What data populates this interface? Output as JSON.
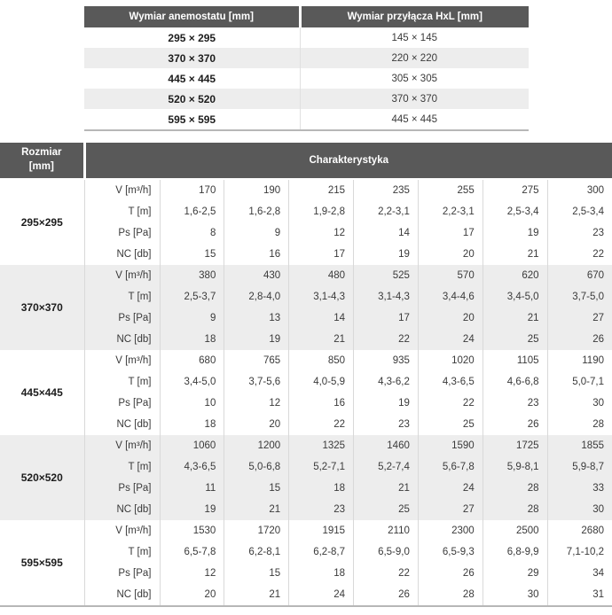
{
  "colors": {
    "header_bg": "#595959",
    "header_text": "#ffffff",
    "row_alt_bg": "#ededed",
    "row_bg": "#ffffff",
    "grid_line": "#d9d9d9",
    "bottom_border": "#b7b7b7",
    "text": "#3a3a3a"
  },
  "dimensions_table": {
    "headers": [
      "Wymiar anemostatu [mm]",
      "Wymiar przyłącza HxL [mm]"
    ],
    "rows": [
      {
        "anemostat": "295 × 295",
        "connector": "145 × 145"
      },
      {
        "anemostat": "370 × 370",
        "connector": "220 × 220"
      },
      {
        "anemostat": "445 × 445",
        "connector": "305 × 305"
      },
      {
        "anemostat": "520 × 520",
        "connector": "370 × 370"
      },
      {
        "anemostat": "595 × 595",
        "connector": "445 × 445"
      }
    ]
  },
  "characteristics_table": {
    "header_size": "Rozmiar [mm]",
    "header_main": "Charakterystyka",
    "row_labels": [
      "V [m³/h]",
      "T [m]",
      "Ps [Pa]",
      "NC [db]"
    ],
    "groups": [
      {
        "size": "295×295",
        "rows": [
          [
            "170",
            "190",
            "215",
            "235",
            "255",
            "275",
            "300"
          ],
          [
            "1,6-2,5",
            "1,6-2,8",
            "1,9-2,8",
            "2,2-3,1",
            "2,2-3,1",
            "2,5-3,4",
            "2,5-3,4"
          ],
          [
            "8",
            "9",
            "12",
            "14",
            "17",
            "19",
            "23"
          ],
          [
            "15",
            "16",
            "17",
            "19",
            "20",
            "21",
            "22"
          ]
        ]
      },
      {
        "size": "370×370",
        "rows": [
          [
            "380",
            "430",
            "480",
            "525",
            "570",
            "620",
            "670"
          ],
          [
            "2,5-3,7",
            "2,8-4,0",
            "3,1-4,3",
            "3,1-4,3",
            "3,4-4,6",
            "3,4-5,0",
            "3,7-5,0"
          ],
          [
            "9",
            "13",
            "14",
            "17",
            "20",
            "21",
            "27"
          ],
          [
            "18",
            "19",
            "21",
            "22",
            "24",
            "25",
            "26"
          ]
        ]
      },
      {
        "size": "445×445",
        "rows": [
          [
            "680",
            "765",
            "850",
            "935",
            "1020",
            "1105",
            "1190"
          ],
          [
            "3,4-5,0",
            "3,7-5,6",
            "4,0-5,9",
            "4,3-6,2",
            "4,3-6,5",
            "4,6-6,8",
            "5,0-7,1"
          ],
          [
            "10",
            "12",
            "16",
            "19",
            "22",
            "23",
            "30"
          ],
          [
            "18",
            "20",
            "22",
            "23",
            "25",
            "26",
            "28"
          ]
        ]
      },
      {
        "size": "520×520",
        "rows": [
          [
            "1060",
            "1200",
            "1325",
            "1460",
            "1590",
            "1725",
            "1855"
          ],
          [
            "4,3-6,5",
            "5,0-6,8",
            "5,2-7,1",
            "5,2-7,4",
            "5,6-7,8",
            "5,9-8,1",
            "5,9-8,7"
          ],
          [
            "11",
            "15",
            "18",
            "21",
            "24",
            "28",
            "33"
          ],
          [
            "19",
            "21",
            "23",
            "25",
            "27",
            "28",
            "30"
          ]
        ]
      },
      {
        "size": "595×595",
        "rows": [
          [
            "1530",
            "1720",
            "1915",
            "2110",
            "2300",
            "2500",
            "2680"
          ],
          [
            "6,5-7,8",
            "6,2-8,1",
            "6,2-8,7",
            "6,5-9,0",
            "6,5-9,3",
            "6,8-9,9",
            "7,1-10,2"
          ],
          [
            "12",
            "15",
            "18",
            "22",
            "26",
            "29",
            "34"
          ],
          [
            "20",
            "21",
            "24",
            "26",
            "28",
            "30",
            "31"
          ]
        ]
      }
    ]
  }
}
